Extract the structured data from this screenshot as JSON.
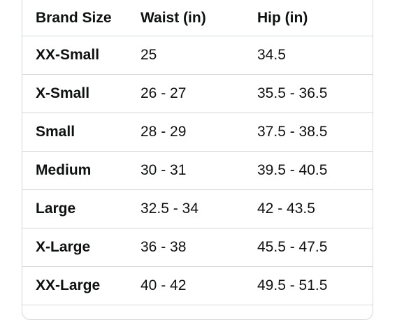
{
  "table": {
    "headers": [
      "Brand Size",
      "Waist (in)",
      "Hip (in)"
    ],
    "rows": [
      [
        "XX-Small",
        "25",
        "34.5"
      ],
      [
        "X-Small",
        "26 - 27",
        "35.5 - 36.5"
      ],
      [
        "Small",
        "28 - 29",
        "37.5 - 38.5"
      ],
      [
        "Medium",
        "30 - 31",
        "39.5 - 40.5"
      ],
      [
        "Large",
        "32.5 - 34",
        "42 - 43.5"
      ],
      [
        "X-Large",
        "36 - 38",
        "45.5 - 47.5"
      ],
      [
        "XX-Large",
        "40 - 42",
        "49.5 - 51.5"
      ]
    ]
  },
  "colors": {
    "border": "#d5d9d9",
    "text": "#0f1111"
  }
}
